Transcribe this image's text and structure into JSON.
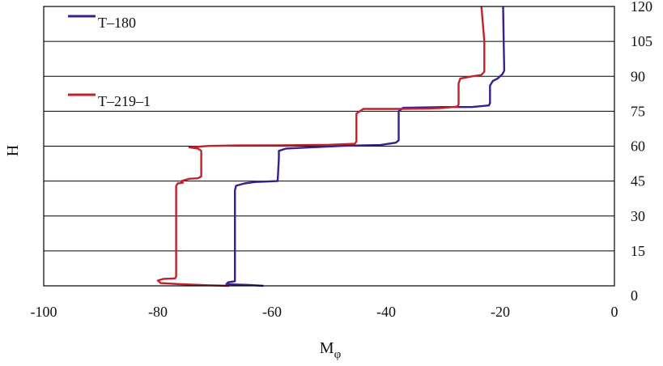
{
  "chart_data": {
    "type": "line",
    "title": "",
    "xlabel": "M",
    "xlabel_sub": "φ",
    "ylabel": "H",
    "xlim": [
      -100,
      0
    ],
    "ylim": [
      0,
      120
    ],
    "x_ticks": [
      "-100",
      "-80",
      "-60",
      "-40",
      "-20",
      "0"
    ],
    "x_tick_values": [
      -100,
      -80,
      -60,
      -40,
      -20,
      0
    ],
    "y_ticks": [
      "0",
      "15",
      "30",
      "45",
      "60",
      "75",
      "90",
      "105",
      "120"
    ],
    "y_tick_values": [
      0,
      15,
      30,
      45,
      60,
      75,
      90,
      105,
      120
    ],
    "y_axis_side": "right",
    "grid": "horizontal",
    "legend": "top-left",
    "series": [
      {
        "name": "T–180",
        "color": "#3a1f8c",
        "points": [
          [
            -61.5,
            0
          ],
          [
            -64,
            0.4
          ],
          [
            -68,
            0.7
          ],
          [
            -67.7,
            1.5
          ],
          [
            -66.5,
            2
          ],
          [
            -66.5,
            41
          ],
          [
            -66.3,
            43
          ],
          [
            -64.8,
            44
          ],
          [
            -63,
            44.6
          ],
          [
            -59,
            45
          ],
          [
            -58.8,
            55
          ],
          [
            -58.8,
            58
          ],
          [
            -57.5,
            59
          ],
          [
            -53,
            59.5
          ],
          [
            -47,
            60.2
          ],
          [
            -41,
            60.5
          ],
          [
            -38.3,
            61.5
          ],
          [
            -37.8,
            62.5
          ],
          [
            -37.8,
            75
          ],
          [
            -37,
            76.5
          ],
          [
            -30,
            76.8
          ],
          [
            -25,
            76.8
          ],
          [
            -22,
            77.5
          ],
          [
            -21.8,
            78.5
          ],
          [
            -21.8,
            86
          ],
          [
            -21.3,
            88
          ],
          [
            -20.5,
            89
          ],
          [
            -19.6,
            91
          ],
          [
            -19.3,
            92.5
          ],
          [
            -19.4,
            105
          ],
          [
            -19.5,
            120
          ]
        ]
      },
      {
        "name": "T–219–1",
        "color": "#c4202a",
        "points": [
          [
            -67.5,
            0
          ],
          [
            -72,
            0.3
          ],
          [
            -76,
            0.7
          ],
          [
            -79.5,
            1.2
          ],
          [
            -80,
            2.3
          ],
          [
            -79,
            3
          ],
          [
            -77,
            3.2
          ],
          [
            -76.8,
            4
          ],
          [
            -76.8,
            43
          ],
          [
            -76.5,
            44
          ],
          [
            -75.6,
            44.3
          ],
          [
            -75.9,
            45
          ],
          [
            -74.5,
            46
          ],
          [
            -73,
            46.2
          ],
          [
            -72.4,
            47
          ],
          [
            -72.4,
            58
          ],
          [
            -73,
            59
          ],
          [
            -74.5,
            59.5
          ],
          [
            -71,
            60.1
          ],
          [
            -66,
            60.3
          ],
          [
            -58,
            60.4
          ],
          [
            -50,
            60.6
          ],
          [
            -45.5,
            61
          ],
          [
            -45.2,
            62
          ],
          [
            -45.2,
            74
          ],
          [
            -44,
            76
          ],
          [
            -38,
            76
          ],
          [
            -33,
            76.1
          ],
          [
            -30,
            76.4
          ],
          [
            -27.5,
            77
          ],
          [
            -27.3,
            78
          ],
          [
            -27.3,
            87
          ],
          [
            -27,
            89
          ],
          [
            -25,
            90
          ],
          [
            -23.3,
            90.6
          ],
          [
            -22.8,
            92
          ],
          [
            -22.8,
            105
          ],
          [
            -23.3,
            120
          ]
        ]
      }
    ]
  }
}
